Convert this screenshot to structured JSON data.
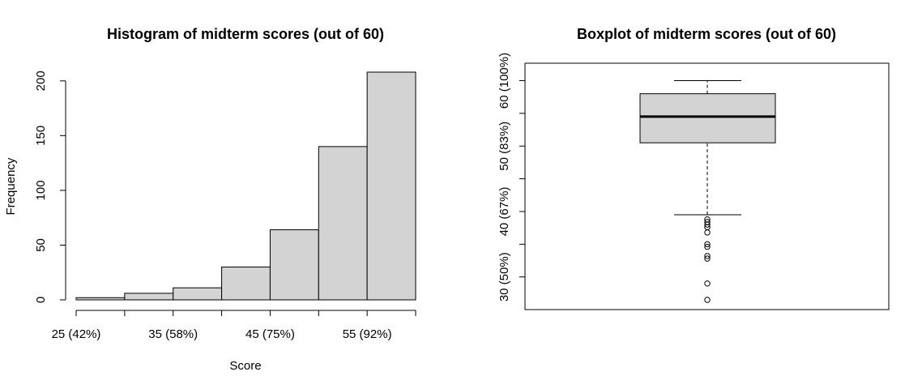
{
  "chart_data": [
    {
      "type": "bar",
      "title": "Histogram of midterm scores (out of 60)",
      "xlabel": "Score",
      "ylabel": "Frequency",
      "bins": [
        [
          25,
          30
        ],
        [
          30,
          35
        ],
        [
          35,
          40
        ],
        [
          40,
          45
        ],
        [
          45,
          50
        ],
        [
          50,
          55
        ],
        [
          55,
          60
        ]
      ],
      "values": [
        2,
        6,
        11,
        30,
        64,
        140,
        208
      ],
      "xlim": [
        25,
        60
      ],
      "ylim": [
        0,
        208
      ],
      "x_ticks": [
        25,
        30,
        35,
        40,
        45,
        50,
        55,
        60
      ],
      "x_tick_labels": [
        {
          "value": 25,
          "label": "25 (42%)"
        },
        {
          "value": 35,
          "label": "35 (58%)"
        },
        {
          "value": 45,
          "label": "45 (75%)"
        },
        {
          "value": 55,
          "label": "55 (92%)"
        }
      ],
      "y_ticks": [
        0,
        50,
        100,
        150,
        200
      ],
      "y_tick_labels": [
        "0",
        "50",
        "100",
        "150",
        "200"
      ],
      "bar_color": "#d3d3d3",
      "grid": false
    },
    {
      "type": "box",
      "title": "Boxplot of midterm scores (out of 60)",
      "xlabel": "",
      "ylabel": "",
      "ylim": [
        26.5,
        61.3
      ],
      "box": {
        "whisker_low": 39.5,
        "q1": 50.5,
        "median": 54.5,
        "q3": 58,
        "whisker_high": 60
      },
      "outliers": [
        38.8,
        38.4,
        38,
        37.6,
        36.8,
        35,
        34.6,
        33.2,
        32.8,
        29,
        26.5
      ],
      "y_ticks": [
        30,
        35,
        40,
        45,
        50,
        55,
        60
      ],
      "y_tick_labels": [
        {
          "value": 30,
          "label": "30 (50%)"
        },
        {
          "value": 40,
          "label": "40 (67%)"
        },
        {
          "value": 50,
          "label": "50 (83%)"
        },
        {
          "value": 60,
          "label": "60 (100%)"
        }
      ],
      "box_color": "#d3d3d3",
      "grid": false
    }
  ]
}
